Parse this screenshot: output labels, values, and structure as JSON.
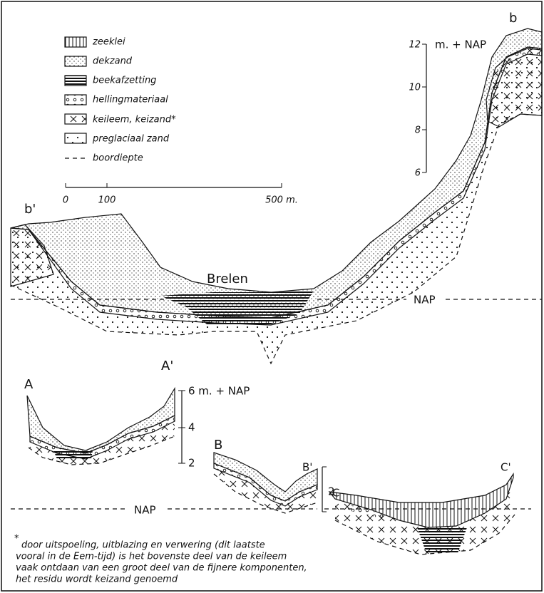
{
  "legend": [
    "zeeklei",
    "dekzand",
    "beekafzetting",
    "hellingmateriaal",
    "keileem, keizand*",
    "preglaciaal zand",
    "boordiepte"
  ],
  "scale_bar": {
    "ticks": [
      "0",
      "100",
      "500 m."
    ]
  },
  "main_section": {
    "left_label": "b'",
    "right_label": "b",
    "place": "Brelen",
    "datum": "NAP",
    "height_scale": {
      "unit": "m. + NAP",
      "ticks": [
        "12",
        "10",
        "8",
        "6"
      ]
    }
  },
  "section_a": {
    "left_label": "A",
    "right_label": "A'",
    "height_scale": {
      "top": "6 m. + NAP",
      "ticks": [
        "4",
        "2"
      ]
    }
  },
  "section_b": {
    "left_label": "B",
    "right_label": "B'",
    "height_scale": {
      "ticks": [
        "2"
      ]
    }
  },
  "section_c": {
    "left_label": "C",
    "right_label": "C'"
  },
  "lower_datum": "NAP",
  "footnote": {
    "marker": "*",
    "lines": [
      "door uitspoeling, uitblazing en verwering (dit laatste",
      "vooral in de Eem-tijd) is het bovenste deel van de keileem",
      "vaak ontdaan van een groot deel van de fijnere komponenten,",
      "het residu wordt keizand genoemd"
    ]
  }
}
